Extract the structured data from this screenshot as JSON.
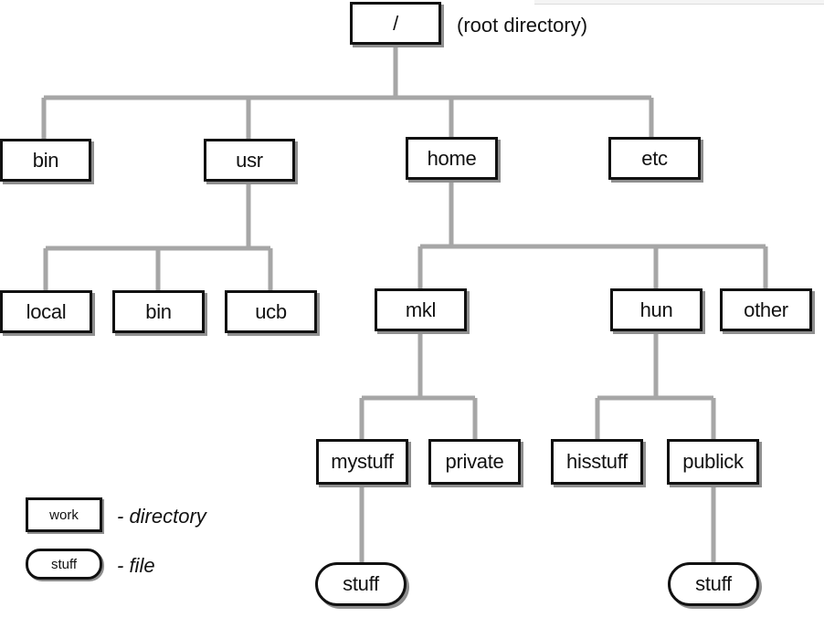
{
  "root_note": "(root directory)",
  "nodes": {
    "root": "/",
    "bin": "bin",
    "usr": "usr",
    "home": "home",
    "etc": "etc",
    "local": "local",
    "usr_bin": "bin",
    "ucb": "ucb",
    "mkl": "mkl",
    "hun": "hun",
    "other": "other",
    "mystuff": "mystuff",
    "private": "private",
    "hisstuff": "hisstuff",
    "publick": "publick",
    "stuff_left": "stuff",
    "stuff_right": "stuff"
  },
  "legend": {
    "dir_example": "work",
    "dir_label": "- directory",
    "file_example": "stuff",
    "file_label": "- file"
  }
}
